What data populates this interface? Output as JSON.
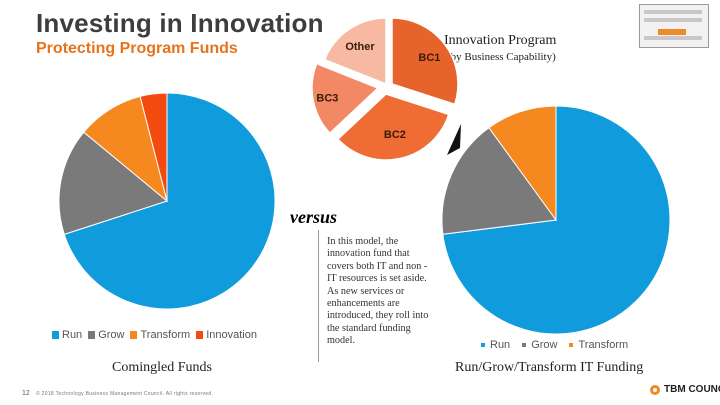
{
  "header": {
    "title": "Investing in Innovation",
    "subtitle": "Protecting Program Funds"
  },
  "innovation_program": {
    "title": "Innovation Program",
    "subtitle": "(by Business Capability)"
  },
  "versus": "versus",
  "body_text": "In this model, the innovation fund that covers both IT and non -IT resources is set aside. As new services or enhancements are introduced, they roll into the standard funding model.",
  "captions": {
    "left": "Comingled Funds",
    "right": "Run/Grow/Transform IT Funding"
  },
  "footer": {
    "page_number": "12",
    "copyright": "© 2018 Technology Business Management Council. All rights reserved.",
    "brand": "TBM COUNCIL"
  },
  "colors": {
    "run": "#0f9bdc",
    "grow": "#7a7a7a",
    "transform": "#f5891f",
    "innovation": "#f54a0f",
    "bc1": "#e6642c",
    "bc2": "#ef6c34",
    "bc3": "#f28964",
    "other": "#f8b9a3"
  },
  "chart_data": [
    {
      "type": "pie",
      "name": "comingled",
      "categories": [
        "Run",
        "Grow",
        "Transform",
        "Innovation"
      ],
      "values": [
        70,
        16,
        10,
        4
      ],
      "colors": [
        "#0f9bdc",
        "#7a7a7a",
        "#f5891f",
        "#f54a0f"
      ],
      "legend_placement": "bottom"
    },
    {
      "type": "pie",
      "name": "innovation-program",
      "categories": [
        "BC1",
        "BC2",
        "BC3",
        "Other"
      ],
      "values": [
        30,
        33,
        18,
        19
      ],
      "colors": [
        "#e6642c",
        "#ef6c34",
        "#f28964",
        "#f8b9a3"
      ],
      "exploded": true,
      "labels_inside": true
    },
    {
      "type": "pie",
      "name": "run-grow-transform",
      "categories": [
        "Run",
        "Grow",
        "Transform"
      ],
      "values": [
        73,
        17,
        10
      ],
      "colors": [
        "#0f9bdc",
        "#7a7a7a",
        "#f5891f"
      ],
      "legend_placement": "bottom"
    }
  ]
}
